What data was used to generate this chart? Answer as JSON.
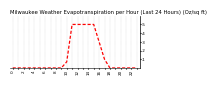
{
  "title": "Milwaukee Weather Evapotranspiration per Hour (Last 24 Hours) (Oz/sq ft)",
  "hours": [
    0,
    1,
    2,
    3,
    4,
    5,
    6,
    7,
    8,
    9,
    10,
    11,
    12,
    13,
    14,
    15,
    16,
    17,
    18,
    19,
    20,
    21,
    22,
    23
  ],
  "values": [
    0.0,
    0.0,
    0.0,
    0.0,
    0.0,
    0.0,
    0.0,
    0.0,
    0.0,
    0.0,
    0.07,
    0.5,
    0.5,
    0.5,
    0.5,
    0.5,
    0.3,
    0.1,
    0.0,
    0.0,
    0.0,
    0.0,
    0.0,
    0.0
  ],
  "line_color": "#ff0000",
  "bg_color": "#ffffff",
  "grid_color": "#888888",
  "ylim": [
    0,
    0.6
  ],
  "ytick_values": [
    0.1,
    0.2,
    0.3,
    0.4,
    0.5
  ],
  "ytick_labels": [
    ".1",
    ".2",
    ".3",
    ".4",
    ".5"
  ],
  "title_fontsize": 3.8,
  "tick_fontsize": 3.0,
  "line_width": 0.9,
  "dash_pattern": [
    2.5,
    1.5
  ]
}
